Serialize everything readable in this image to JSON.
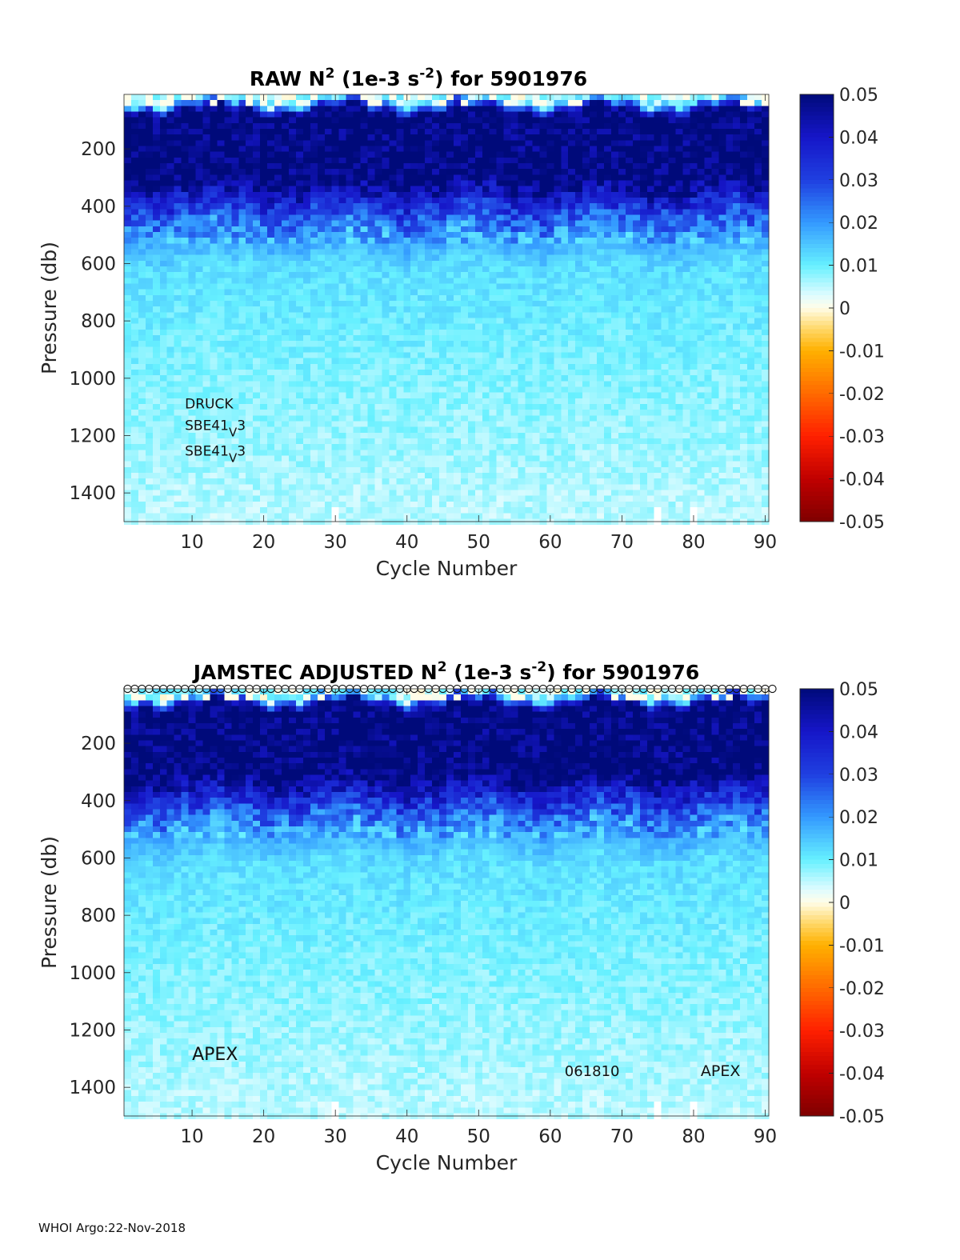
{
  "footer": "WHOI Argo:22-Nov-2018",
  "colormap": {
    "stops": [
      [
        -0.05,
        "#7f0000"
      ],
      [
        -0.04,
        "#c00000"
      ],
      [
        -0.03,
        "#ff2000"
      ],
      [
        -0.02,
        "#ff6a00"
      ],
      [
        -0.01,
        "#ffb000"
      ],
      [
        -0.005,
        "#ffd766"
      ],
      [
        0.0,
        "#fffde8"
      ],
      [
        0.003,
        "#dffcff"
      ],
      [
        0.01,
        "#66f0ff"
      ],
      [
        0.02,
        "#3399ff"
      ],
      [
        0.03,
        "#1f3fe0"
      ],
      [
        0.04,
        "#1616c8"
      ],
      [
        0.05,
        "#000a7a"
      ]
    ]
  },
  "chart_data": [
    {
      "type": "heatmap",
      "title_parts": [
        "RAW N",
        "2",
        " (1e-3 s",
        "-2",
        ") for 5901976"
      ],
      "xlabel": "Cycle Number",
      "ylabel": "Pressure (db)",
      "xlim": [
        1,
        90
      ],
      "ylim": [
        1500,
        10
      ],
      "xticks": [
        10,
        20,
        30,
        40,
        50,
        60,
        70,
        80,
        90
      ],
      "yticks": [
        200,
        400,
        600,
        800,
        1000,
        1200,
        1400
      ],
      "colorbar": {
        "range": [
          -0.05,
          0.05
        ],
        "ticks": [
          "0.05",
          "0.04",
          "0.03",
          "0.02",
          "0.01",
          "0",
          "-0.01",
          "-0.02",
          "-0.03",
          "-0.04",
          "-0.05"
        ]
      },
      "value_profile": [
        {
          "pressure": 20,
          "value": 0.006
        },
        {
          "pressure": 60,
          "value": 0.05
        },
        {
          "pressure": 300,
          "value": 0.05
        },
        {
          "pressure": 380,
          "value": 0.035
        },
        {
          "pressure": 480,
          "value": 0.02
        },
        {
          "pressure": 600,
          "value": 0.012
        },
        {
          "pressure": 900,
          "value": 0.009
        },
        {
          "pressure": 1200,
          "value": 0.007
        },
        {
          "pressure": 1500,
          "value": 0.005
        }
      ],
      "missing_cycles": [
        30,
        75,
        80
      ],
      "top_markers": false,
      "annotations": [
        {
          "text": "DRUCK",
          "x": 9,
          "y": 1105,
          "size": 17
        },
        {
          "text": "SBE41",
          "sub": "V",
          "after": "3",
          "x": 9,
          "y": 1180,
          "size": 17
        },
        {
          "text": "SBE41",
          "sub": "V",
          "after": "3",
          "x": 9,
          "y": 1270,
          "size": 17
        }
      ]
    },
    {
      "type": "heatmap",
      "title_parts": [
        "JAMSTEC  ADJUSTED N",
        "2",
        " (1e-3 s",
        "-2",
        ") for 5901976"
      ],
      "xlabel": "Cycle Number",
      "ylabel": "Pressure (db)",
      "xlim": [
        1,
        90
      ],
      "ylim": [
        1500,
        10
      ],
      "xticks": [
        10,
        20,
        30,
        40,
        50,
        60,
        70,
        80,
        90
      ],
      "yticks": [
        200,
        400,
        600,
        800,
        1000,
        1200,
        1400
      ],
      "colorbar": {
        "range": [
          -0.05,
          0.05
        ],
        "ticks": [
          "0.05",
          "0.04",
          "0.03",
          "0.02",
          "0.01",
          "0",
          "-0.01",
          "-0.02",
          "-0.03",
          "-0.04",
          "-0.05"
        ]
      },
      "value_profile": [
        {
          "pressure": 20,
          "value": 0.006
        },
        {
          "pressure": 60,
          "value": 0.05
        },
        {
          "pressure": 300,
          "value": 0.05
        },
        {
          "pressure": 380,
          "value": 0.035
        },
        {
          "pressure": 480,
          "value": 0.02
        },
        {
          "pressure": 600,
          "value": 0.012
        },
        {
          "pressure": 900,
          "value": 0.009
        },
        {
          "pressure": 1200,
          "value": 0.007
        },
        {
          "pressure": 1500,
          "value": 0.005
        }
      ],
      "missing_cycles": [
        30,
        75,
        80
      ],
      "top_markers": true,
      "annotations": [
        {
          "text": "APEX",
          "x": 10,
          "y": 1305,
          "size": 22
        },
        {
          "text": "061810",
          "x": 62,
          "y": 1360,
          "size": 18
        },
        {
          "text": "APEX",
          "x": 81,
          "y": 1360,
          "size": 19
        }
      ]
    }
  ]
}
